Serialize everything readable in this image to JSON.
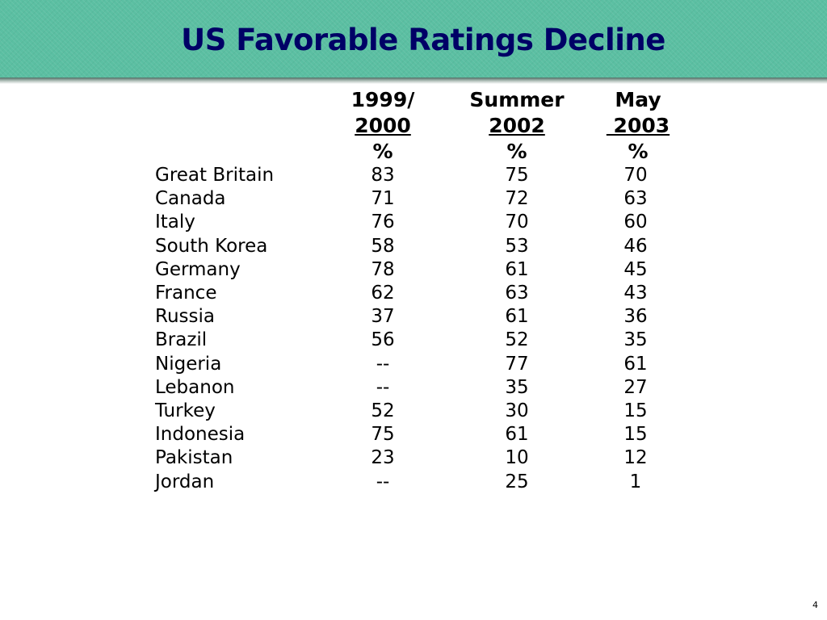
{
  "title": "US Favorable Ratings Decline",
  "page_number": "4",
  "colors": {
    "title_bar": "#5bbfa2",
    "title_text": "#000066"
  },
  "columns": [
    {
      "line1": "1999/",
      "line2": "2000",
      "line3": "%"
    },
    {
      "line1": "Summer",
      "line2": "2002",
      "line3": "%"
    },
    {
      "line1": "May",
      "line2": " 2003",
      "line3": "%"
    }
  ],
  "rows": [
    {
      "country": "Great Britain",
      "values": [
        "83",
        "75",
        "70"
      ]
    },
    {
      "country": "Canada",
      "values": [
        "71",
        "72",
        "63"
      ]
    },
    {
      "country": "Italy",
      "values": [
        "76",
        "70",
        "60"
      ]
    },
    {
      "country": "South Korea",
      "values": [
        "58",
        "53",
        "46"
      ]
    },
    {
      "country": "Germany",
      "values": [
        "78",
        "61",
        "45"
      ]
    },
    {
      "country": "France",
      "values": [
        "62",
        "63",
        "43"
      ]
    },
    {
      "country": "Russia",
      "values": [
        "37",
        "61",
        "36"
      ]
    },
    {
      "country": "Brazil",
      "values": [
        "56",
        "52",
        "35"
      ]
    },
    {
      "country": "Nigeria",
      "values": [
        "--",
        "77",
        "61"
      ]
    },
    {
      "country": "Lebanon",
      "values": [
        "--",
        "35",
        "27"
      ]
    },
    {
      "country": "Turkey",
      "values": [
        "52",
        "30",
        "15"
      ]
    },
    {
      "country": "Indonesia",
      "values": [
        "75",
        "61",
        "15"
      ]
    },
    {
      "country": "Pakistan",
      "values": [
        "23",
        "10",
        "12"
      ]
    },
    {
      "country": "Jordan",
      "values": [
        "--",
        "25",
        "1"
      ]
    }
  ],
  "chart_data": {
    "type": "table",
    "title": "US Favorable Ratings Decline",
    "columns": [
      "1999/2000 %",
      "Summer 2002 %",
      "May 2003 %"
    ],
    "categories": [
      "Great Britain",
      "Canada",
      "Italy",
      "South Korea",
      "Germany",
      "France",
      "Russia",
      "Brazil",
      "Nigeria",
      "Lebanon",
      "Turkey",
      "Indonesia",
      "Pakistan",
      "Jordan"
    ],
    "series": [
      {
        "name": "1999/2000",
        "values": [
          83,
          71,
          76,
          58,
          78,
          62,
          37,
          56,
          null,
          null,
          52,
          75,
          23,
          null
        ]
      },
      {
        "name": "Summer 2002",
        "values": [
          75,
          72,
          70,
          53,
          61,
          63,
          61,
          52,
          77,
          35,
          30,
          61,
          10,
          25
        ]
      },
      {
        "name": "May 2003",
        "values": [
          70,
          63,
          60,
          46,
          45,
          43,
          36,
          35,
          61,
          27,
          15,
          15,
          12,
          1
        ]
      }
    ]
  }
}
